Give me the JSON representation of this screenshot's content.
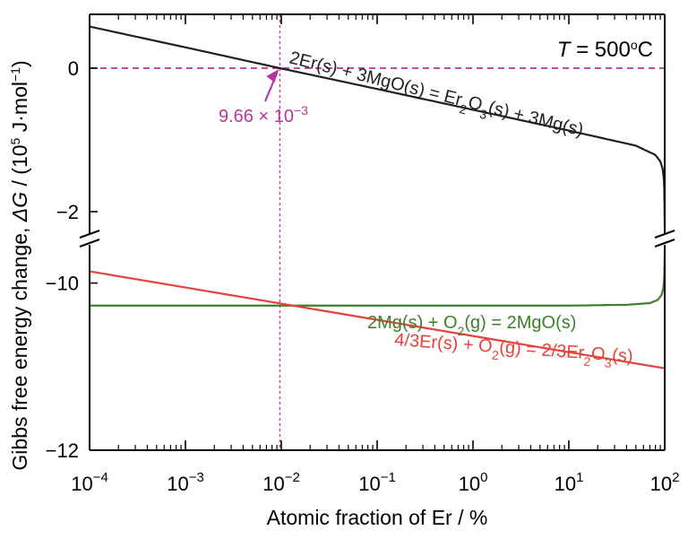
{
  "chart_data": {
    "type": "line",
    "xlabel": "Atomic fraction of Er / %",
    "ylabel": {
      "prefix": "Gibbs free energy change, ",
      "delta": "ΔG",
      "rest": " / (10",
      "exp": "5",
      "unit": " J·mol",
      "unit_exp": "−1",
      "close": ")"
    },
    "xscale": "log",
    "xlim": [
      0.0001,
      100
    ],
    "x_ticks": [
      {
        "base": "10",
        "exp": "−4",
        "value": 0.0001
      },
      {
        "base": "10",
        "exp": "−3",
        "value": 0.001
      },
      {
        "base": "10",
        "exp": "−2",
        "value": 0.01
      },
      {
        "base": "10",
        "exp": "−1",
        "value": 0.1
      },
      {
        "base": "10",
        "exp": "0",
        "value": 1
      },
      {
        "base": "10",
        "exp": "1",
        "value": 10
      },
      {
        "base": "10",
        "exp": "2",
        "value": 100
      }
    ],
    "y_axis_broken": true,
    "y_upper_segment": {
      "ylim": [
        -2.2,
        0.75
      ],
      "ticks": [
        {
          "value": 0,
          "label": "0"
        },
        {
          "value": -2,
          "label": "−2"
        }
      ]
    },
    "y_lower_segment": {
      "ylim": [
        -12,
        -9.65
      ],
      "ticks": [
        {
          "value": -10,
          "label": "−10"
        },
        {
          "value": -12,
          "label": "−12"
        }
      ]
    },
    "temperature_label": {
      "var": "T",
      "rest": " = 500",
      "deg": "o",
      "unit": "C"
    },
    "series": [
      {
        "name": "2Er(s) + 3MgO(s) = Er2O3(s) + 3Mg(s)",
        "color": "#231f20",
        "segment": "upper",
        "x": [
          0.0001,
          0.001,
          0.00966,
          0.1,
          1,
          10,
          50,
          80,
          90,
          95,
          98,
          99,
          99.5,
          100
        ],
        "y": [
          0.58,
          0.29,
          0.0,
          -0.29,
          -0.58,
          -0.87,
          -1.08,
          -1.21,
          -1.3,
          -1.4,
          -1.55,
          -1.7,
          -1.9,
          -2.2
        ]
      },
      {
        "name": "2Mg(s) + O2(g) = 2MgO(s)",
        "color": "#3f7f2b",
        "segment": "lower",
        "x": [
          0.0001,
          0.01,
          1,
          10,
          40,
          70,
          85,
          93,
          97,
          99,
          100
        ],
        "y": [
          -10.27,
          -10.27,
          -10.27,
          -10.27,
          -10.26,
          -10.24,
          -10.2,
          -10.14,
          -10.05,
          -9.92,
          -9.65
        ]
      },
      {
        "name": "4/3Er(s) + O2(g) = 2/3Er2O3(s)",
        "color": "#e8413c",
        "segment": "lower",
        "x": [
          0.0001,
          100
        ],
        "y": [
          -9.86,
          -11.02
        ]
      }
    ],
    "reference_lines": [
      {
        "kind": "horizontal",
        "segment": "upper",
        "y": 0,
        "color": "#b8369a",
        "style": "dashed"
      },
      {
        "kind": "vertical",
        "x": 0.00966,
        "color": "#b8369a",
        "style": "dotted"
      }
    ],
    "annotation": {
      "mantissa": "9.66 × 10",
      "exp": "−3",
      "color": "#b8369a",
      "points_to": {
        "x": 0.00966,
        "y": 0
      }
    },
    "series_labels": {
      "black": {
        "parts": [
          "2Er(s) + 3MgO(s) = Er",
          "2",
          "O",
          "3",
          "(s) + 3Mg(s)"
        ]
      },
      "green": {
        "parts": [
          "2Mg(s) + O",
          "2",
          "(g) = 2MgO(s)"
        ]
      },
      "red": {
        "parts": [
          "4/3Er(s) + O",
          "2",
          "(g) = 2/3Er",
          "2",
          "O",
          "3",
          "(s)"
        ]
      }
    }
  }
}
